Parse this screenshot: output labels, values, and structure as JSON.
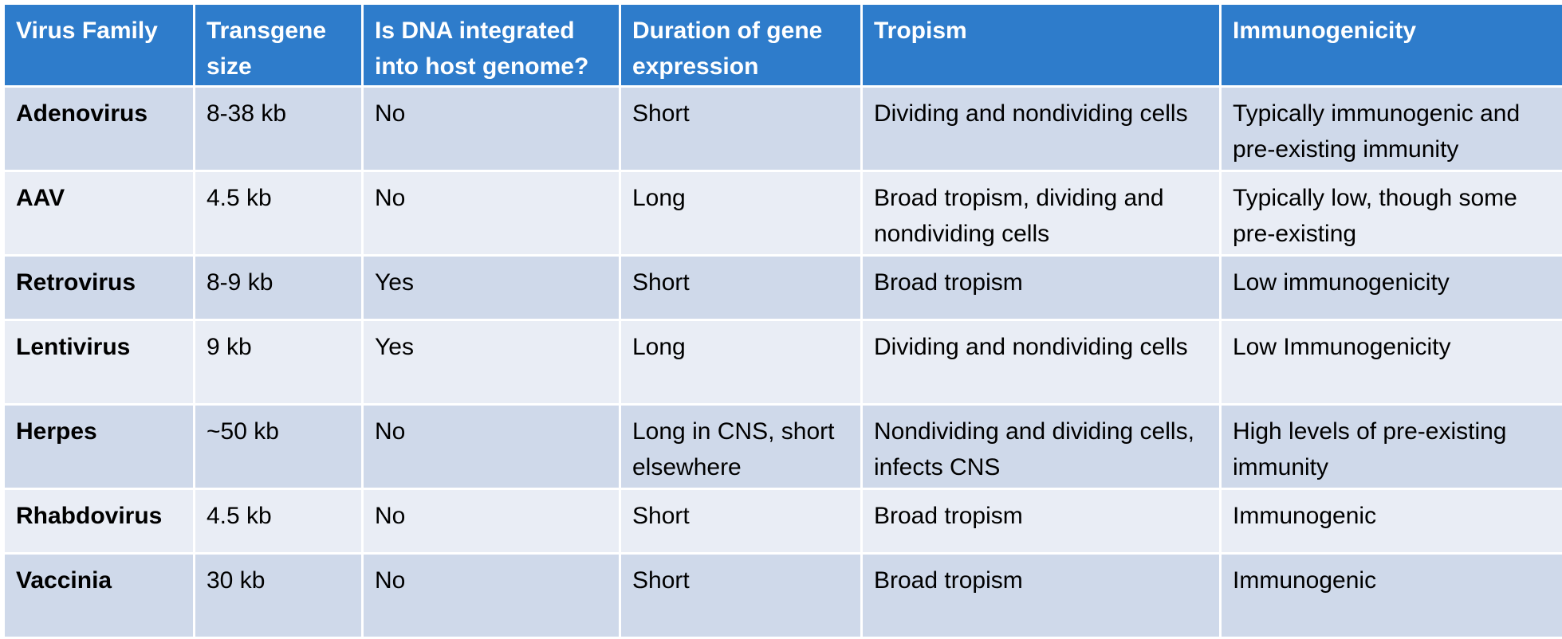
{
  "table": {
    "header": [
      "Virus Family",
      "Transgene size",
      "Is DNA integrated into host genome?",
      "Duration of gene expression",
      "Tropism",
      "Immunogenicity"
    ],
    "rows": [
      [
        "Adenovirus",
        "8-38 kb",
        "No",
        "Short",
        "Dividing and nondividing cells",
        "Typically immunogenic and pre-existing immunity"
      ],
      [
        "AAV",
        "4.5 kb",
        "No",
        "Long",
        "Broad tropism, dividing and nondividing cells",
        "Typically low, though some pre-existing"
      ],
      [
        "Retrovirus",
        "8-9 kb",
        "Yes",
        "Short",
        "Broad tropism",
        "Low immunogenicity"
      ],
      [
        "Lentivirus",
        "9 kb",
        "Yes",
        "Long",
        "Dividing and nondividing cells",
        "Low Immunogenicity"
      ],
      [
        "Herpes",
        "~50 kb",
        "No",
        "Long in CNS, short elsewhere",
        "Nondividing and dividing cells, infects CNS",
        "High levels of pre-existing immunity"
      ],
      [
        "Rhabdovirus",
        "4.5 kb",
        "No",
        "Short",
        "Broad tropism",
        "Immunogenic"
      ],
      [
        "Vaccinia",
        "30 kb",
        "No",
        "Short",
        "Broad tropism",
        "Immunogenic"
      ]
    ]
  }
}
